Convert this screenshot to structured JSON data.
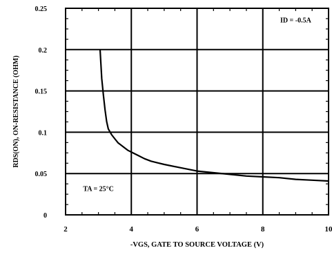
{
  "chart_data": {
    "type": "line",
    "title": "",
    "xlabel": "-VGS, GATE TO SOURCE VOLTAGE (V)",
    "ylabel": "RDS(ON), ON-RESISTANCE (OHM)",
    "xlim": [
      2,
      10
    ],
    "ylim": [
      0,
      0.25
    ],
    "x_ticks": [
      2,
      4,
      6,
      8,
      10
    ],
    "x_tick_labels": [
      "2",
      "4",
      "6",
      "8",
      "10"
    ],
    "y_ticks": [
      0,
      0.05,
      0.1,
      0.15,
      0.2,
      0.25
    ],
    "y_tick_labels": [
      "0",
      "0.05",
      "0.1",
      "0.15",
      "0.2",
      "0.25"
    ],
    "grid": true,
    "annotations": [
      {
        "text": "ID = -0.5A",
        "x": 9.0,
        "y": 0.233
      },
      {
        "text": "TA = 25°C",
        "x": 3.0,
        "y": 0.029
      }
    ],
    "series": [
      {
        "x": [
          3.05,
          3.1,
          3.15,
          3.2,
          3.25,
          3.3,
          3.4,
          3.5,
          3.6,
          3.7,
          3.8,
          3.9,
          4.0,
          4.2,
          4.4,
          4.6,
          4.8,
          5.0,
          5.5,
          6.0,
          6.5,
          7.0,
          7.5,
          8.0,
          8.5,
          9.0,
          9.5,
          10.0
        ],
        "values": [
          0.2,
          0.165,
          0.145,
          0.127,
          0.113,
          0.104,
          0.097,
          0.092,
          0.087,
          0.084,
          0.081,
          0.078,
          0.076,
          0.072,
          0.068,
          0.065,
          0.063,
          0.061,
          0.057,
          0.053,
          0.051,
          0.049,
          0.047,
          0.046,
          0.045,
          0.043,
          0.042,
          0.041
        ]
      }
    ]
  }
}
